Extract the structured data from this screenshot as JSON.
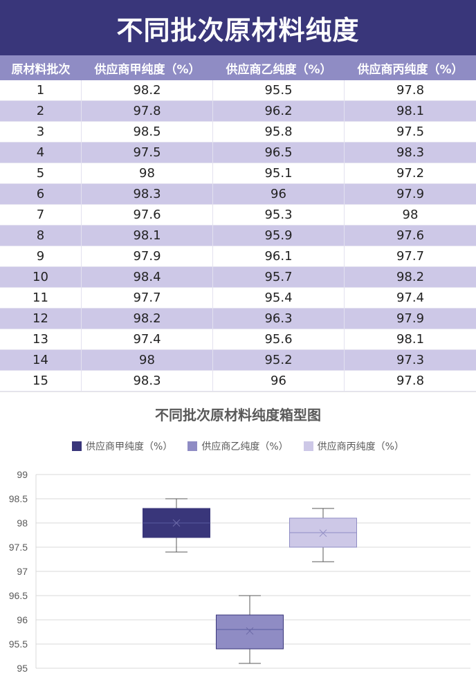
{
  "title": "不同批次原材料纯度",
  "table": {
    "headers": [
      "原材料批次",
      "供应商甲纯度（%）",
      "供应商乙纯度（%）",
      "供应商丙纯度（%）"
    ],
    "rows": [
      [
        "1",
        "98.2",
        "95.5",
        "97.8"
      ],
      [
        "2",
        "97.8",
        "96.2",
        "98.1"
      ],
      [
        "3",
        "98.5",
        "95.8",
        "97.5"
      ],
      [
        "4",
        "97.5",
        "96.5",
        "98.3"
      ],
      [
        "5",
        "98",
        "95.1",
        "97.2"
      ],
      [
        "6",
        "98.3",
        "96",
        "97.9"
      ],
      [
        "7",
        "97.6",
        "95.3",
        "98"
      ],
      [
        "8",
        "98.1",
        "95.9",
        "97.6"
      ],
      [
        "9",
        "97.9",
        "96.1",
        "97.7"
      ],
      [
        "10",
        "98.4",
        "95.7",
        "98.2"
      ],
      [
        "11",
        "97.7",
        "95.4",
        "97.4"
      ],
      [
        "12",
        "98.2",
        "96.3",
        "97.9"
      ],
      [
        "13",
        "97.4",
        "95.6",
        "98.1"
      ],
      [
        "14",
        "98",
        "95.2",
        "97.3"
      ],
      [
        "15",
        "98.3",
        "96",
        "97.8"
      ]
    ]
  },
  "chart_data": {
    "type": "box",
    "title": "不同批次原材料纯度箱型图",
    "legend_position": "top",
    "ylim": [
      95,
      99
    ],
    "yticks": [
      "95",
      "95.5",
      "96",
      "96.5",
      "97",
      "97.5",
      "98",
      "98.5",
      "99"
    ],
    "grid": true,
    "series": [
      {
        "name": "供应商甲纯度（%）",
        "color": "#39367a",
        "min": 97.4,
        "q1": 97.7,
        "median": 98.0,
        "q3": 98.3,
        "max": 98.5,
        "mean": 98.0
      },
      {
        "name": "供应商乙纯度（%）",
        "color": "#8f8cc4",
        "min": 95.1,
        "q1": 95.4,
        "median": 95.8,
        "q3": 96.1,
        "max": 96.5,
        "mean": 95.77
      },
      {
        "name": "供应商丙纯度（%）",
        "color": "#cdc8e7",
        "min": 97.2,
        "q1": 97.5,
        "median": 97.8,
        "q3": 98.1,
        "max": 98.3,
        "mean": 97.79
      }
    ]
  }
}
